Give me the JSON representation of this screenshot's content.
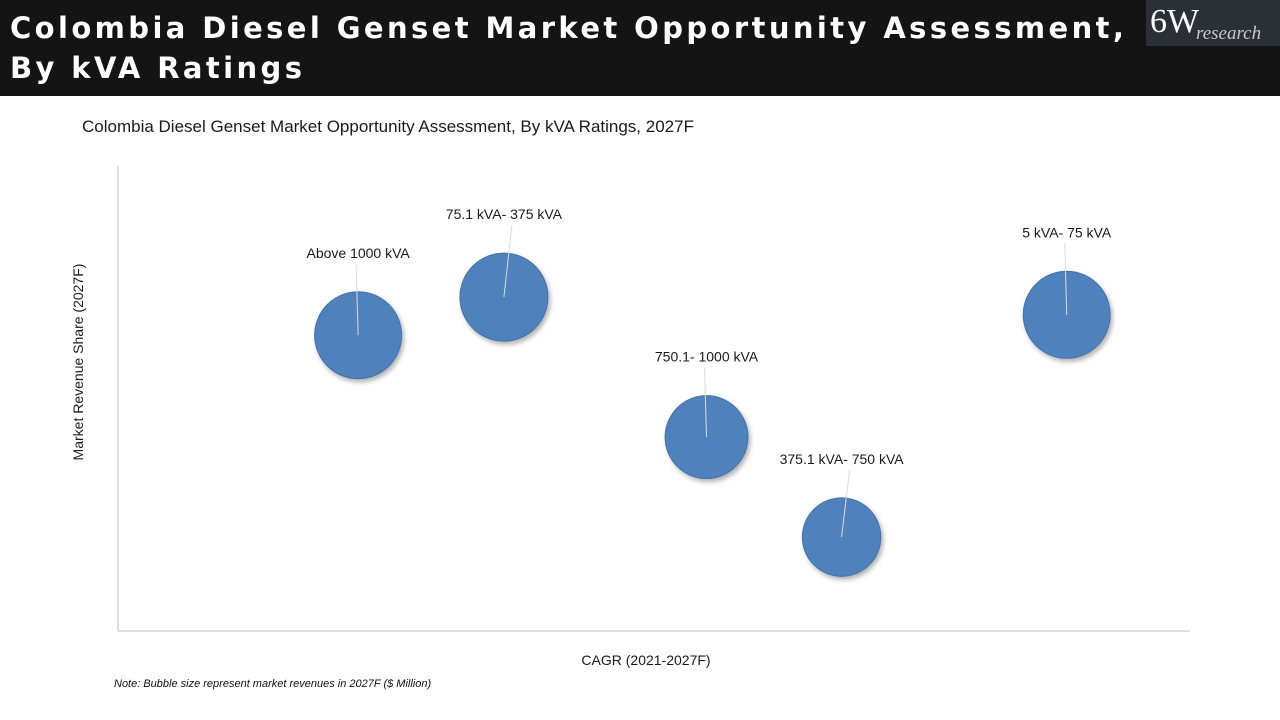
{
  "header": {
    "title": "Colombia Diesel Genset Market Opportunity Assessment, By kVA Ratings",
    "logo_main": "6W",
    "logo_sub": "research"
  },
  "colors": {
    "bubble": "#4f81bd",
    "bubble_edge": "#4472a8",
    "header_bg": "#141414",
    "axis": "#bfbfbf"
  },
  "note": "Note: Bubble size represent market revenues in 2027F ($ Million)",
  "chart_data": {
    "type": "bubble",
    "title": "Colombia Diesel Genset Market Opportunity Assessment, By kVA Ratings, 2027F",
    "xlabel": "CAGR (2021-2027F)",
    "ylabel": "Market Revenue Share (2027F)",
    "xlim": [
      0,
      100
    ],
    "ylim": [
      0,
      100
    ],
    "grid": false,
    "points": [
      {
        "label": "Above 1000 kVA",
        "x": 22.4,
        "y": 63.6,
        "size": 86
      },
      {
        "label": "75.1 kVA- 375 kVA",
        "x": 36,
        "y": 71.8,
        "size": 88
      },
      {
        "label": "750.1- 1000 kVA",
        "x": 54.9,
        "y": 41.7,
        "size": 78
      },
      {
        "label": "375.1 kVA- 750 kVA",
        "x": 67.5,
        "y": 20.2,
        "size": 70
      },
      {
        "label": "5 kVA- 75 kVA",
        "x": 88.5,
        "y": 68,
        "size": 86
      }
    ]
  }
}
